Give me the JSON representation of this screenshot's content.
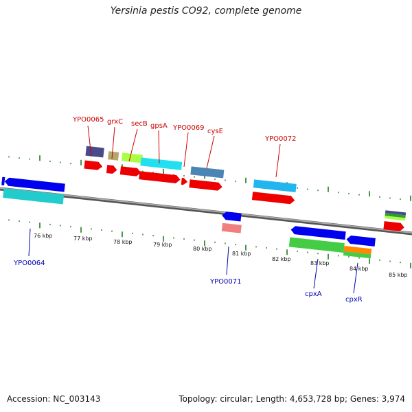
{
  "title": "Yersinia pestis CO92, complete genome",
  "footer": {
    "accession": "Accession: NC_003143",
    "summary": "Topology: circular; Length: 4,653,728 bp; Genes: 3,974"
  },
  "colors": {
    "backbone": "#7a7a7a",
    "tick": "#1f7a1f",
    "forward_label": "#cc0000",
    "reverse_label": "#0000b0"
  },
  "ticks": [
    "76 kbp",
    "77 kbp",
    "78 kbp",
    "79 kbp",
    "80 kbp",
    "81 kbp",
    "82 kbp",
    "83 kbp",
    "84 kbp",
    "85 kbp"
  ],
  "forward_labels": [
    {
      "name": "ypo0065",
      "text": "YPO0065"
    },
    {
      "name": "grxc",
      "text": "grxC"
    },
    {
      "name": "secb",
      "text": "secB"
    },
    {
      "name": "gpsa",
      "text": "gpsA"
    },
    {
      "name": "ypo0069",
      "text": "YPO0069"
    },
    {
      "name": "cyse",
      "text": "cysE"
    },
    {
      "name": "ypo0072",
      "text": "YPO0072"
    }
  ],
  "reverse_labels": [
    {
      "name": "ypo0064",
      "text": "YPO0064"
    },
    {
      "name": "ypo0071",
      "text": "YPO0071"
    },
    {
      "name": "cpxa",
      "text": "cpxA"
    },
    {
      "name": "cpxr",
      "text": "cpxR"
    }
  ]
}
